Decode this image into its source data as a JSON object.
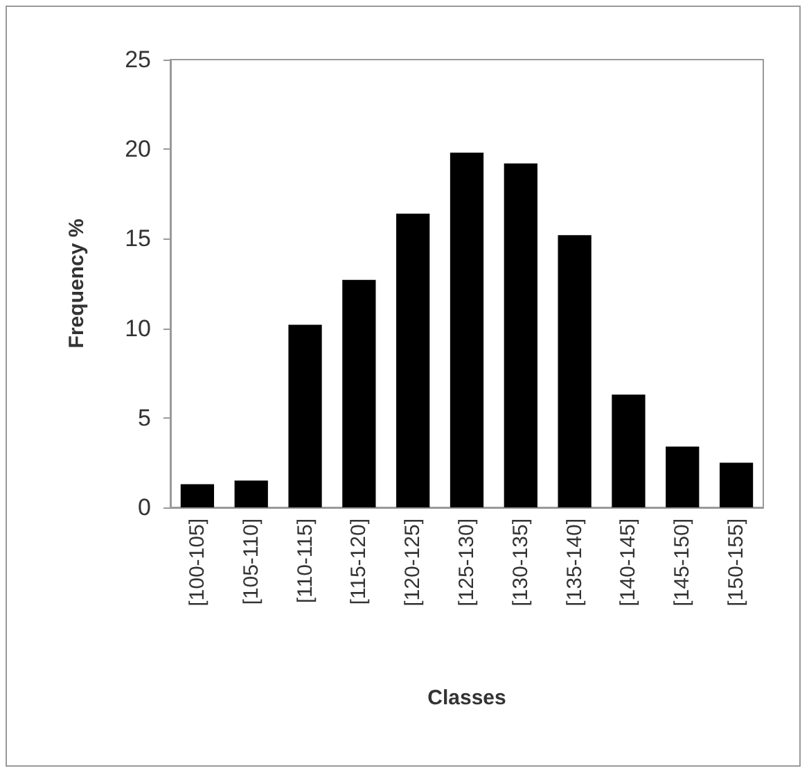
{
  "chart_data": {
    "type": "bar",
    "xlabel": "Classes",
    "ylabel": "Frequency %",
    "categories": [
      "[100-105]",
      "[105-110]",
      "[110-115]",
      "[115-120]",
      "[120-125]",
      "[125-130]",
      "[130-135]",
      "[135-140]",
      "[140-145]",
      "[145-150]",
      "[150-155]"
    ],
    "values": [
      1.3,
      1.5,
      10.2,
      12.7,
      16.4,
      19.8,
      19.2,
      15.2,
      6.3,
      3.4,
      2.5
    ],
    "color": "#000000",
    "ylim": [
      0,
      25
    ],
    "yticks": [
      0,
      5,
      10,
      15,
      20,
      25
    ],
    "grid": false
  }
}
